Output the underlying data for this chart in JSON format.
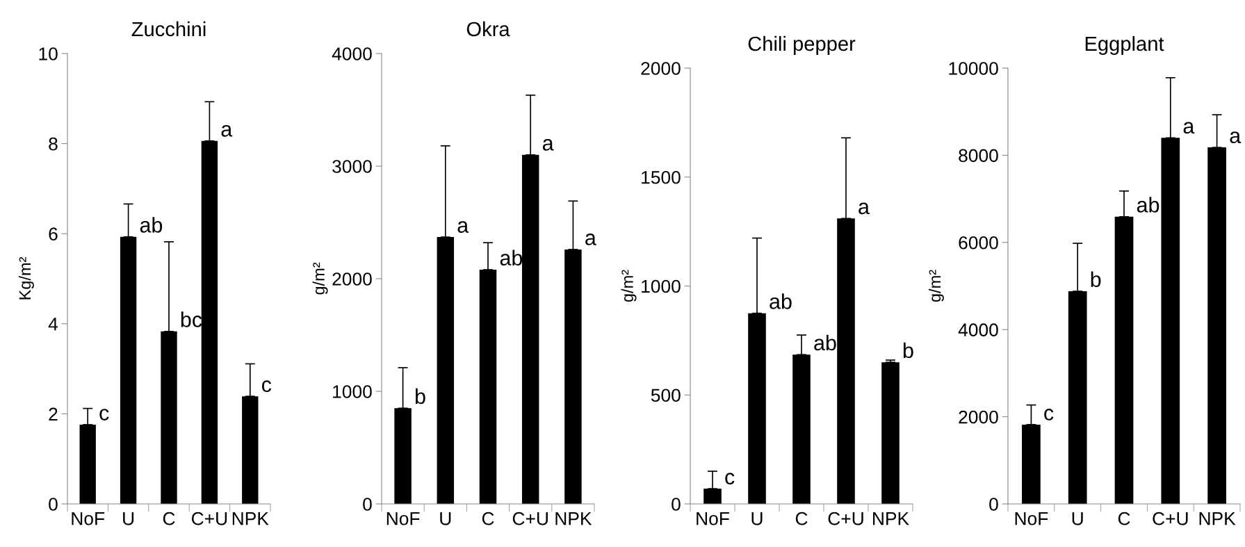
{
  "chart_data": [
    {
      "type": "bar",
      "title": "Zucchini",
      "ylabel": "Kg/m²",
      "categories": [
        "NoF",
        "U",
        "C",
        "C+U",
        "NPK"
      ],
      "values": [
        1.76,
        5.93,
        3.83,
        8.06,
        2.39
      ],
      "errors": [
        [
          1.76,
          2.12
        ],
        [
          5.93,
          6.66
        ],
        [
          3.83,
          5.82
        ],
        [
          8.06,
          8.93
        ],
        [
          2.39,
          3.11
        ]
      ],
      "color": "#000000",
      "ylim": [
        0,
        10
      ],
      "yticks": [
        0,
        2,
        4,
        6,
        8,
        10
      ],
      "grid": false,
      "legend": false,
      "annotations": [
        {
          "text": "c",
          "x": "NoF",
          "y": 1.76
        },
        {
          "text": "ab",
          "x": "U",
          "y": 5.93
        },
        {
          "text": "bc",
          "x": "C",
          "y": 3.83
        },
        {
          "text": "a",
          "x": "C+U",
          "y": 8.06
        },
        {
          "text": "c",
          "x": "NPK",
          "y": 2.39
        }
      ]
    },
    {
      "type": "bar",
      "title": "Okra",
      "ylabel": "g/m²",
      "categories": [
        "NoF",
        "U",
        "C",
        "C+U",
        "NPK"
      ],
      "values": [
        850,
        2370,
        2080,
        3100,
        2260
      ],
      "errors": [
        [
          850,
          1210
        ],
        [
          2370,
          3180
        ],
        [
          2080,
          2320
        ],
        [
          3100,
          3630
        ],
        [
          2260,
          2690
        ]
      ],
      "color": "#000000",
      "ylim": [
        0,
        4000
      ],
      "yticks": [
        0,
        1000,
        2000,
        3000,
        4000
      ],
      "grid": false,
      "legend": false,
      "annotations": [
        {
          "text": "b",
          "x": "NoF",
          "y": 850
        },
        {
          "text": "a",
          "x": "U",
          "y": 2370
        },
        {
          "text": "ab",
          "x": "C",
          "y": 2080
        },
        {
          "text": "a",
          "x": "C+U",
          "y": 3100
        },
        {
          "text": "a",
          "x": "NPK",
          "y": 2260
        }
      ]
    },
    {
      "type": "bar",
      "title": "Chili pepper",
      "ylabel": "g/m²",
      "categories": [
        "NoF",
        "U",
        "C",
        "C+U",
        "NPK"
      ],
      "values": [
        70,
        875,
        685,
        1310,
        650
      ],
      "errors": [
        [
          70,
          150
        ],
        [
          875,
          1220
        ],
        [
          685,
          775
        ],
        [
          1310,
          1680
        ],
        [
          650,
          660
        ]
      ],
      "color": "#000000",
      "ylim": [
        0,
        2000
      ],
      "yticks": [
        0,
        500,
        1000,
        1500,
        2000
      ],
      "grid": false,
      "legend": false,
      "annotations": [
        {
          "text": "c",
          "x": "NoF",
          "y": 70
        },
        {
          "text": "ab",
          "x": "U",
          "y": 875
        },
        {
          "text": "ab",
          "x": "C",
          "y": 685
        },
        {
          "text": "a",
          "x": "C+U",
          "y": 1310
        },
        {
          "text": "b",
          "x": "NPK",
          "y": 650
        }
      ]
    },
    {
      "type": "bar",
      "title": "Eggplant",
      "ylabel": "g/m²",
      "categories": [
        "NoF",
        "U",
        "C",
        "C+U",
        "NPK"
      ],
      "values": [
        1820,
        4880,
        6590,
        8400,
        8180
      ],
      "errors": [
        [
          1820,
          2270
        ],
        [
          4880,
          5980
        ],
        [
          6590,
          7180
        ],
        [
          8400,
          9780
        ],
        [
          8180,
          8930
        ]
      ],
      "color": "#000000",
      "ylim": [
        0,
        10000
      ],
      "yticks": [
        0,
        2000,
        4000,
        6000,
        8000,
        10000
      ],
      "grid": false,
      "legend": false,
      "annotations": [
        {
          "text": "c",
          "x": "NoF",
          "y": 1820
        },
        {
          "text": "b",
          "x": "U",
          "y": 4880
        },
        {
          "text": "ab",
          "x": "C",
          "y": 6590
        },
        {
          "text": "a",
          "x": "C+U",
          "y": 8400
        },
        {
          "text": "a",
          "x": "NPK",
          "y": 8180
        }
      ]
    }
  ]
}
